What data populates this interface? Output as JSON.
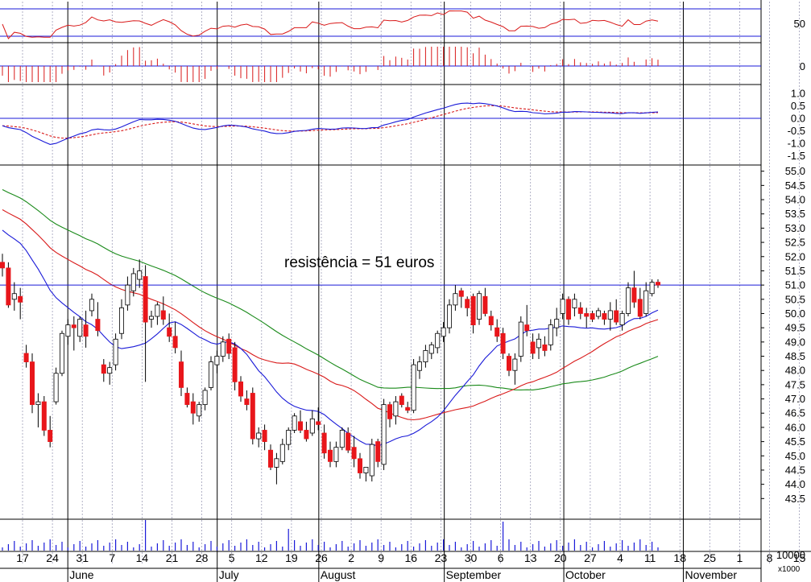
{
  "chart_data": {
    "type": "candlestick",
    "annotation": "resistência = 51 euros",
    "resistance_level": 51.0,
    "colors": {
      "up": "#ffffff",
      "down": "#e8161b",
      "ma_short": "#1a1ad8",
      "ma_mid": "#d91a1a",
      "ma_long": "#1a8a1a",
      "volume": "#1a1ad8",
      "grid": "#9e9eb8"
    },
    "price_panel": {
      "ylim": [
        43.0,
        55.5
      ],
      "ticks": [
        "43.5",
        "44.0",
        "44.5",
        "45.0",
        "45.5",
        "46.0",
        "46.5",
        "47.0",
        "47.5",
        "48.0",
        "48.5",
        "49.0",
        "49.5",
        "50.0",
        "50.5",
        "51.0",
        "51.5",
        "52.0",
        "52.5",
        "53.0",
        "53.5",
        "54.0",
        "54.5",
        "55.0"
      ],
      "candles": [
        [
          51.8,
          52.1,
          51.3,
          51.6
        ],
        [
          51.6,
          51.8,
          50.2,
          50.3
        ],
        [
          50.5,
          51.1,
          50.1,
          50.7
        ],
        [
          50.6,
          50.9,
          49.8,
          50.4
        ],
        [
          48.6,
          48.9,
          48.1,
          48.3
        ],
        [
          48.3,
          48.6,
          46.5,
          46.8
        ],
        [
          46.8,
          47.2,
          46.0,
          46.9
        ],
        [
          46.9,
          47.1,
          45.7,
          45.9
        ],
        [
          45.9,
          46.4,
          45.3,
          45.5
        ],
        [
          46.9,
          48.1,
          46.8,
          47.9
        ],
        [
          47.9,
          49.4,
          47.8,
          49.3
        ],
        [
          49.2,
          49.8,
          48.9,
          49.6
        ],
        [
          49.6,
          49.9,
          48.7,
          49.5
        ],
        [
          49.2,
          49.9,
          49.0,
          49.8
        ],
        [
          49.6,
          50.1,
          48.8,
          49.2
        ],
        [
          50.1,
          50.7,
          49.9,
          50.5
        ],
        [
          49.8,
          50.4,
          49.2,
          49.4
        ],
        [
          48.2,
          48.4,
          47.6,
          47.9
        ],
        [
          47.9,
          48.3,
          47.5,
          48.1
        ],
        [
          48.2,
          49.3,
          48.0,
          49.1
        ],
        [
          49.3,
          50.5,
          49.1,
          50.2
        ],
        [
          50.3,
          51.3,
          50.1,
          51.0
        ],
        [
          50.8,
          51.6,
          50.6,
          51.4
        ],
        [
          51.2,
          51.9,
          50.9,
          51.5
        ],
        [
          51.3,
          51.7,
          47.6,
          49.7
        ],
        [
          49.8,
          50.1,
          49.5,
          49.9
        ],
        [
          49.9,
          50.4,
          49.6,
          50.3
        ],
        [
          50.1,
          50.6,
          49.6,
          49.8
        ],
        [
          49.5,
          50.0,
          49.0,
          49.2
        ],
        [
          49.2,
          49.7,
          48.6,
          48.8
        ],
        [
          48.3,
          48.7,
          47.1,
          47.4
        ],
        [
          47.2,
          47.4,
          46.7,
          46.8
        ],
        [
          46.9,
          47.2,
          46.1,
          46.5
        ],
        [
          46.4,
          46.9,
          46.2,
          46.8
        ],
        [
          46.8,
          47.4,
          46.6,
          47.3
        ],
        [
          47.4,
          48.5,
          47.3,
          48.3
        ],
        [
          48.2,
          48.7,
          47.9,
          48.5
        ],
        [
          48.5,
          49.2,
          48.3,
          49.0
        ],
        [
          49.1,
          49.3,
          48.4,
          48.6
        ],
        [
          48.8,
          49.0,
          47.3,
          47.6
        ],
        [
          47.6,
          47.8,
          46.9,
          47.1
        ],
        [
          47.0,
          47.3,
          46.6,
          46.8
        ],
        [
          47.2,
          47.4,
          45.4,
          45.6
        ],
        [
          45.6,
          46.0,
          45.3,
          45.8
        ],
        [
          45.9,
          46.1,
          45.2,
          45.5
        ],
        [
          45.2,
          45.4,
          44.5,
          44.6
        ],
        [
          44.6,
          45.1,
          44.0,
          44.9
        ],
        [
          44.8,
          45.6,
          44.7,
          45.4
        ],
        [
          45.4,
          46.0,
          45.2,
          45.9
        ],
        [
          45.9,
          46.5,
          45.8,
          46.4
        ],
        [
          46.2,
          46.6,
          45.8,
          45.9
        ],
        [
          45.9,
          46.2,
          45.5,
          45.6
        ],
        [
          45.8,
          46.6,
          45.7,
          46.3
        ],
        [
          46.2,
          46.7,
          45.9,
          46.1
        ],
        [
          45.8,
          46.1,
          44.9,
          45.1
        ],
        [
          45.2,
          45.5,
          44.6,
          44.8
        ],
        [
          44.8,
          45.5,
          44.6,
          45.3
        ],
        [
          45.3,
          46.0,
          45.2,
          45.9
        ],
        [
          45.8,
          46.0,
          45.1,
          45.2
        ],
        [
          45.3,
          45.7,
          44.6,
          44.9
        ],
        [
          44.9,
          45.1,
          44.2,
          44.4
        ],
        [
          44.4,
          44.5,
          44.1,
          44.6
        ],
        [
          44.3,
          45.6,
          44.1,
          45.4
        ],
        [
          45.5,
          45.6,
          44.6,
          44.8
        ],
        [
          44.7,
          47.0,
          44.5,
          46.8
        ],
        [
          46.8,
          46.9,
          46.0,
          46.3
        ],
        [
          46.4,
          47.1,
          46.1,
          46.9
        ],
        [
          47.1,
          47.2,
          46.7,
          46.8
        ],
        [
          46.7,
          46.9,
          46.5,
          46.6
        ],
        [
          46.6,
          48.4,
          46.5,
          48.2
        ],
        [
          48.0,
          48.5,
          47.7,
          48.3
        ],
        [
          48.3,
          48.9,
          48.1,
          48.7
        ],
        [
          48.6,
          49.0,
          48.4,
          48.9
        ],
        [
          48.8,
          49.4,
          48.6,
          49.3
        ],
        [
          49.2,
          49.7,
          49.0,
          49.5
        ],
        [
          49.5,
          50.5,
          49.3,
          50.3
        ],
        [
          50.3,
          51.0,
          50.1,
          50.7
        ],
        [
          50.8,
          50.9,
          50.2,
          50.6
        ],
        [
          50.5,
          50.6,
          49.9,
          50.2
        ],
        [
          50.6,
          50.7,
          49.3,
          49.6
        ],
        [
          49.8,
          50.8,
          49.6,
          50.7
        ],
        [
          50.6,
          50.9,
          49.9,
          50.0
        ],
        [
          49.9,
          50.1,
          49.4,
          49.6
        ],
        [
          49.5,
          49.8,
          49.0,
          49.2
        ],
        [
          49.3,
          49.5,
          48.4,
          48.6
        ],
        [
          48.5,
          48.6,
          47.8,
          48.0
        ],
        [
          48.0,
          48.6,
          47.5,
          48.4
        ],
        [
          48.5,
          49.9,
          48.3,
          49.7
        ],
        [
          49.6,
          50.3,
          49.2,
          49.4
        ],
        [
          49.0,
          49.3,
          48.4,
          48.6
        ],
        [
          48.8,
          49.3,
          48.4,
          49.1
        ],
        [
          48.9,
          49.2,
          48.5,
          48.7
        ],
        [
          48.9,
          49.8,
          48.7,
          49.6
        ],
        [
          49.5,
          50.2,
          49.2,
          49.8
        ],
        [
          50.0,
          50.7,
          49.8,
          50.5
        ],
        [
          50.5,
          50.6,
          49.6,
          49.8
        ],
        [
          50.2,
          50.7,
          49.9,
          50.5
        ],
        [
          50.2,
          50.4,
          49.8,
          50.0
        ],
        [
          50.0,
          50.2,
          49.5,
          49.9
        ],
        [
          50.0,
          50.1,
          49.7,
          49.8
        ],
        [
          49.9,
          50.2,
          49.8,
          50.1
        ],
        [
          50.0,
          50.1,
          49.6,
          49.8
        ],
        [
          49.8,
          50.4,
          49.4,
          50.1
        ],
        [
          50.1,
          50.5,
          49.6,
          49.7
        ],
        [
          49.6,
          50.1,
          49.4,
          50.0
        ],
        [
          50.0,
          51.1,
          49.9,
          50.9
        ],
        [
          50.9,
          51.5,
          50.2,
          50.4
        ],
        [
          50.5,
          50.9,
          49.8,
          49.9
        ],
        [
          50.0,
          51.1,
          49.9,
          50.8
        ],
        [
          50.7,
          51.2,
          50.6,
          51.1
        ],
        [
          51.1,
          51.2,
          50.9,
          51.0
        ]
      ]
    },
    "rsi_panel": {
      "tick": "50"
    },
    "momentum_panel": {
      "tick": "0"
    },
    "macd_panel": {
      "ticks": [
        "1.0",
        "0.5",
        "0.0",
        "-0.5",
        "-1.0",
        "-1.5"
      ]
    },
    "volume_panel": {
      "tick": "10000",
      "multiplier": "x1000"
    },
    "x_axis": {
      "day_labels": [
        "17",
        "24",
        "31",
        "7",
        "14",
        "21",
        "28",
        "5",
        "12",
        "19",
        "26",
        "2",
        "9",
        "16",
        "23",
        "30",
        "6",
        "13",
        "20",
        "27",
        "4",
        "11",
        "18",
        "25",
        "1",
        "8",
        "15"
      ],
      "month_labels": [
        "June",
        "July",
        "August",
        "September",
        "October",
        "November"
      ]
    }
  }
}
